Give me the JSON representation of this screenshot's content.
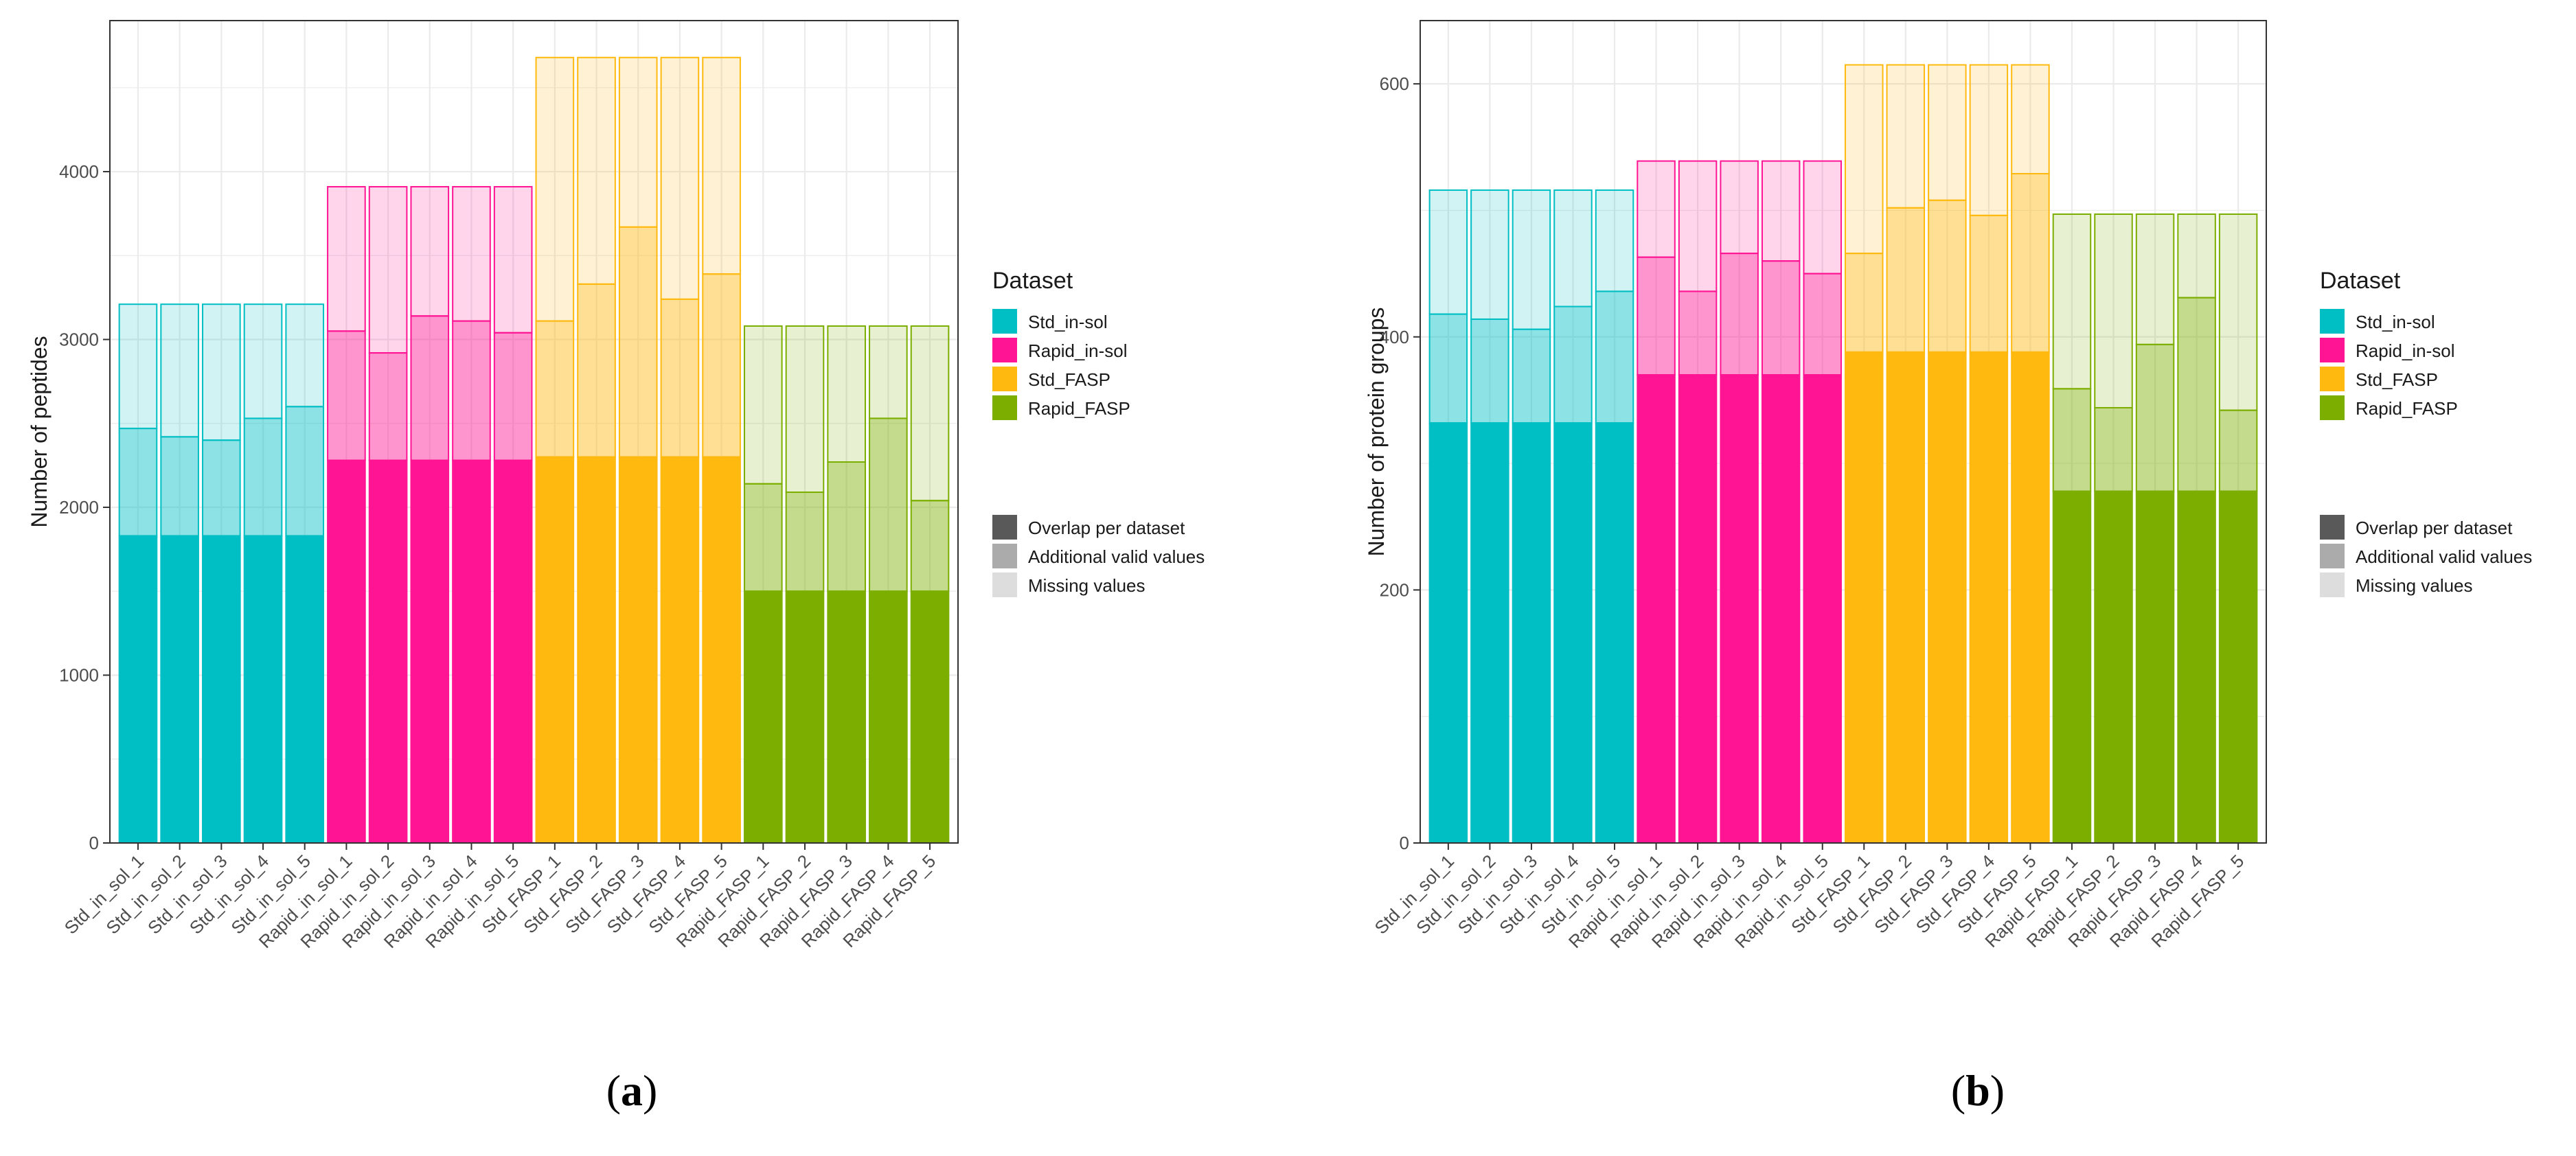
{
  "chart_data": [
    {
      "type": "bar",
      "stacked": true,
      "panel_label": {
        "open": "(",
        "letter": "a",
        "close": ")"
      },
      "ylabel": "Number of peptides",
      "xlabel": "",
      "ylim": [
        0,
        4900
      ],
      "yticks": [
        0,
        1000,
        2000,
        3000,
        4000
      ],
      "categories": [
        "Std_in_sol_1",
        "Std_in_sol_2",
        "Std_in_sol_3",
        "Std_in_sol_4",
        "Std_in_sol_5",
        "Rapid_in_sol_1",
        "Rapid_in_sol_2",
        "Rapid_in_sol_3",
        "Rapid_in_sol_4",
        "Rapid_in_sol_5",
        "Std_FASP_1",
        "Std_FASP_2",
        "Std_FASP_3",
        "Std_FASP_4",
        "Std_FASP_5",
        "Rapid_FASP_1",
        "Rapid_FASP_2",
        "Rapid_FASP_3",
        "Rapid_FASP_4",
        "Rapid_FASP_5"
      ],
      "dataset": [
        "Std_in-sol",
        "Std_in-sol",
        "Std_in-sol",
        "Std_in-sol",
        "Std_in-sol",
        "Rapid_in-sol",
        "Rapid_in-sol",
        "Rapid_in-sol",
        "Rapid_in-sol",
        "Rapid_in-sol",
        "Std_FASP",
        "Std_FASP",
        "Std_FASP",
        "Std_FASP",
        "Std_FASP",
        "Rapid_FASP",
        "Rapid_FASP",
        "Rapid_FASP",
        "Rapid_FASP",
        "Rapid_FASP"
      ],
      "series": [
        {
          "name": "Overlap per dataset",
          "values": [
            1830,
            1830,
            1830,
            1830,
            1830,
            2280,
            2280,
            2280,
            2280,
            2280,
            2300,
            2300,
            2300,
            2300,
            2300,
            1500,
            1500,
            1500,
            1500,
            1500
          ]
        },
        {
          "name": "Additional valid values",
          "values": [
            640,
            590,
            570,
            700,
            770,
            770,
            640,
            860,
            830,
            760,
            810,
            1030,
            1370,
            940,
            1090,
            640,
            590,
            770,
            1030,
            540
          ]
        },
        {
          "name": "Missing values",
          "values": [
            740,
            790,
            810,
            680,
            610,
            860,
            990,
            770,
            800,
            870,
            1570,
            1350,
            1010,
            1440,
            1290,
            940,
            990,
            810,
            550,
            1040
          ]
        }
      ],
      "legend": {
        "title": "Dataset",
        "datasets": [
          "Std_in-sol",
          "Rapid_in-sol",
          "Std_FASP",
          "Rapid_FASP"
        ],
        "fill_types": [
          "Overlap per dataset",
          "Additional valid values",
          "Missing values"
        ]
      }
    },
    {
      "type": "bar",
      "stacked": true,
      "panel_label": {
        "open": "(",
        "letter": "b",
        "close": ")"
      },
      "ylabel": "Number of protein groups",
      "xlabel": "",
      "ylim": [
        0,
        650
      ],
      "yticks": [
        0,
        200,
        400,
        600
      ],
      "categories": [
        "Std_in_sol_1",
        "Std_in_sol_2",
        "Std_in_sol_3",
        "Std_in_sol_4",
        "Std_in_sol_5",
        "Rapid_in_sol_1",
        "Rapid_in_sol_2",
        "Rapid_in_sol_3",
        "Rapid_in_sol_4",
        "Rapid_in_sol_5",
        "Std_FASP_1",
        "Std_FASP_2",
        "Std_FASP_3",
        "Std_FASP_4",
        "Std_FASP_5",
        "Rapid_FASP_1",
        "Rapid_FASP_2",
        "Rapid_FASP_3",
        "Rapid_FASP_4",
        "Rapid_FASP_5"
      ],
      "dataset": [
        "Std_in-sol",
        "Std_in-sol",
        "Std_in-sol",
        "Std_in-sol",
        "Std_in-sol",
        "Rapid_in-sol",
        "Rapid_in-sol",
        "Rapid_in-sol",
        "Rapid_in-sol",
        "Rapid_in-sol",
        "Std_FASP",
        "Std_FASP",
        "Std_FASP",
        "Std_FASP",
        "Std_FASP",
        "Rapid_FASP",
        "Rapid_FASP",
        "Rapid_FASP",
        "Rapid_FASP",
        "Rapid_FASP"
      ],
      "series": [
        {
          "name": "Overlap per dataset",
          "values": [
            332,
            332,
            332,
            332,
            332,
            370,
            370,
            370,
            370,
            370,
            388,
            388,
            388,
            388,
            388,
            278,
            278,
            278,
            278,
            278
          ]
        },
        {
          "name": "Additional valid values",
          "values": [
            86,
            82,
            74,
            92,
            104,
            93,
            66,
            96,
            90,
            80,
            78,
            114,
            120,
            108,
            141,
            81,
            66,
            116,
            153,
            64
          ]
        },
        {
          "name": "Missing values",
          "values": [
            98,
            102,
            110,
            92,
            80,
            76,
            103,
            73,
            79,
            89,
            149,
            113,
            107,
            119,
            86,
            138,
            153,
            103,
            66,
            155
          ]
        }
      ],
      "legend": {
        "title": "Dataset",
        "datasets": [
          "Std_in-sol",
          "Rapid_in-sol",
          "Std_FASP",
          "Rapid_FASP"
        ],
        "fill_types": [
          "Overlap per dataset",
          "Additional valid values",
          "Missing values"
        ]
      }
    }
  ],
  "colors": {
    "Std_in-sol": "#00BFC4",
    "Rapid_in-sol": "#FF1493",
    "Std_FASP": "#FFB90F",
    "Rapid_FASP": "#7CAE00",
    "panel_border": "#333333",
    "grid": "#ebebeb",
    "legend_overlap": "#595959",
    "legend_additional": "#ababab",
    "legend_missing": "#dddddd"
  }
}
